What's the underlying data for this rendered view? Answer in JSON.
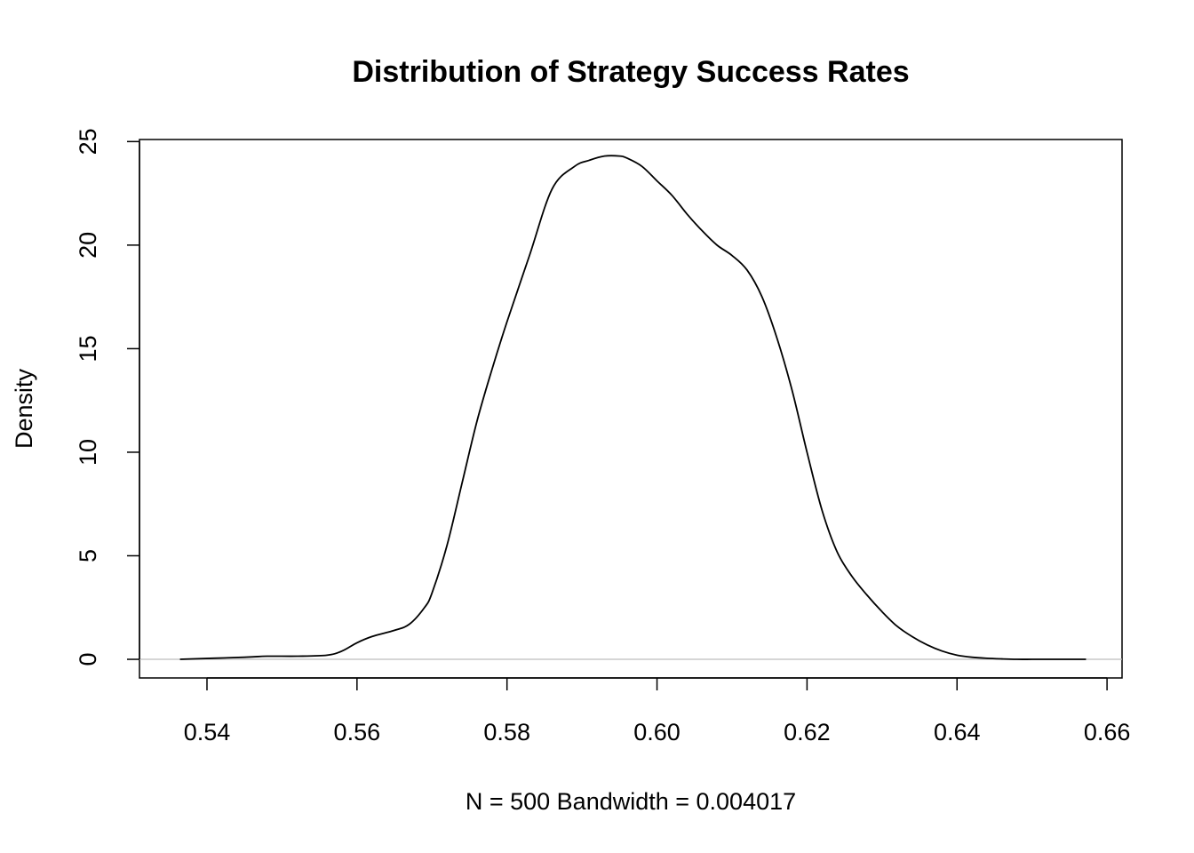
{
  "chart_data": {
    "type": "line",
    "title": "Distribution of Strategy Success Rates",
    "xlabel": "N = 500   Bandwidth = 0.004017",
    "ylabel": "Density",
    "xlim": [
      0.531,
      0.662
    ],
    "ylim": [
      -0.9,
      25.1
    ],
    "x_ticks": [
      "0.54",
      "0.56",
      "0.58",
      "0.60",
      "0.62",
      "0.64",
      "0.66"
    ],
    "y_ticks": [
      "0",
      "5",
      "10",
      "15",
      "20",
      "25"
    ],
    "grid": false,
    "baseline": 0,
    "series": [
      {
        "x": [
          0.5364,
          0.545,
          0.548,
          0.552,
          0.556,
          0.558,
          0.56,
          0.562,
          0.565,
          0.567,
          0.569,
          0.57,
          0.572,
          0.574,
          0.576,
          0.578,
          0.58,
          0.583,
          0.586,
          0.589,
          0.591,
          0.593,
          0.595,
          0.596,
          0.598,
          0.6,
          0.602,
          0.604,
          0.606,
          0.608,
          0.61,
          0.612,
          0.614,
          0.616,
          0.618,
          0.62,
          0.622,
          0.624,
          0.626,
          0.628,
          0.63,
          0.632,
          0.634,
          0.636,
          0.638,
          0.64,
          0.642,
          0.644,
          0.646,
          0.648,
          0.65,
          0.652,
          0.654,
          0.6572
        ],
        "y": [
          0.0,
          0.1,
          0.15,
          0.15,
          0.2,
          0.4,
          0.8,
          1.1,
          1.4,
          1.7,
          2.5,
          3.2,
          5.5,
          8.5,
          11.5,
          14.0,
          16.3,
          19.5,
          22.7,
          23.8,
          24.1,
          24.3,
          24.3,
          24.2,
          23.8,
          23.1,
          22.4,
          21.5,
          20.7,
          20.0,
          19.5,
          18.8,
          17.5,
          15.5,
          13.0,
          10.0,
          7.2,
          5.2,
          4.0,
          3.1,
          2.3,
          1.6,
          1.1,
          0.7,
          0.4,
          0.2,
          0.1,
          0.05,
          0.02,
          0.0,
          0.0,
          0.0,
          0.0,
          0.0
        ]
      }
    ]
  }
}
